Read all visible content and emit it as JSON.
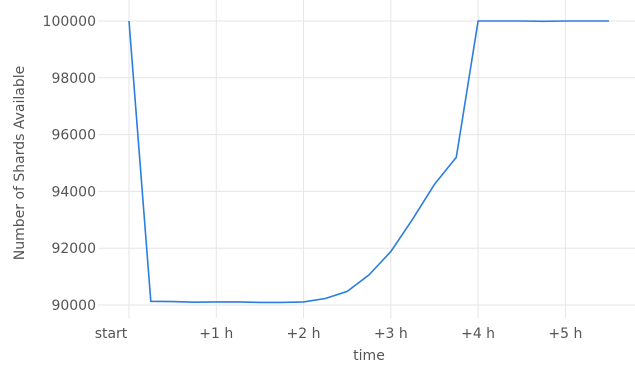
{
  "chart_data": {
    "type": "line",
    "title": "",
    "xlabel": "time",
    "ylabel": "Number of Shards Available",
    "x_ticks": [
      {
        "value": 0,
        "label": "start"
      },
      {
        "value": 1,
        "label": "+1 h"
      },
      {
        "value": 2,
        "label": "+2 h"
      },
      {
        "value": 3,
        "label": "+3 h"
      },
      {
        "value": 4,
        "label": "+4 h"
      },
      {
        "value": 5,
        "label": "+5 h"
      }
    ],
    "y_ticks": [
      {
        "value": 90000,
        "label": "90000"
      },
      {
        "value": 92000,
        "label": "92000"
      },
      {
        "value": 94000,
        "label": "94000"
      },
      {
        "value": 96000,
        "label": "96000"
      },
      {
        "value": 98000,
        "label": "98000"
      },
      {
        "value": 100000,
        "label": "100000"
      }
    ],
    "xlim": [
      0,
      5.6
    ],
    "ylim": [
      89700,
      100300
    ],
    "grid": true,
    "colors": {
      "line": "#2a7de1",
      "grid": "#e6e6e6",
      "text": "#555555"
    },
    "series": [
      {
        "x": [
          0,
          0.25,
          0.5,
          0.75,
          1.0,
          1.25,
          1.5,
          1.75,
          2.0,
          2.25,
          2.5,
          2.75,
          3.0,
          3.25,
          3.5,
          3.75,
          4.0,
          4.25,
          4.5,
          4.75,
          5.0,
          5.25,
          5.5
        ],
        "y": [
          100000,
          90130,
          90120,
          90100,
          90110,
          90110,
          90090,
          90090,
          90110,
          90230,
          90480,
          91060,
          91880,
          93020,
          94250,
          95200,
          100000,
          100000,
          100000,
          99990,
          100000,
          100000,
          100000
        ]
      }
    ]
  }
}
